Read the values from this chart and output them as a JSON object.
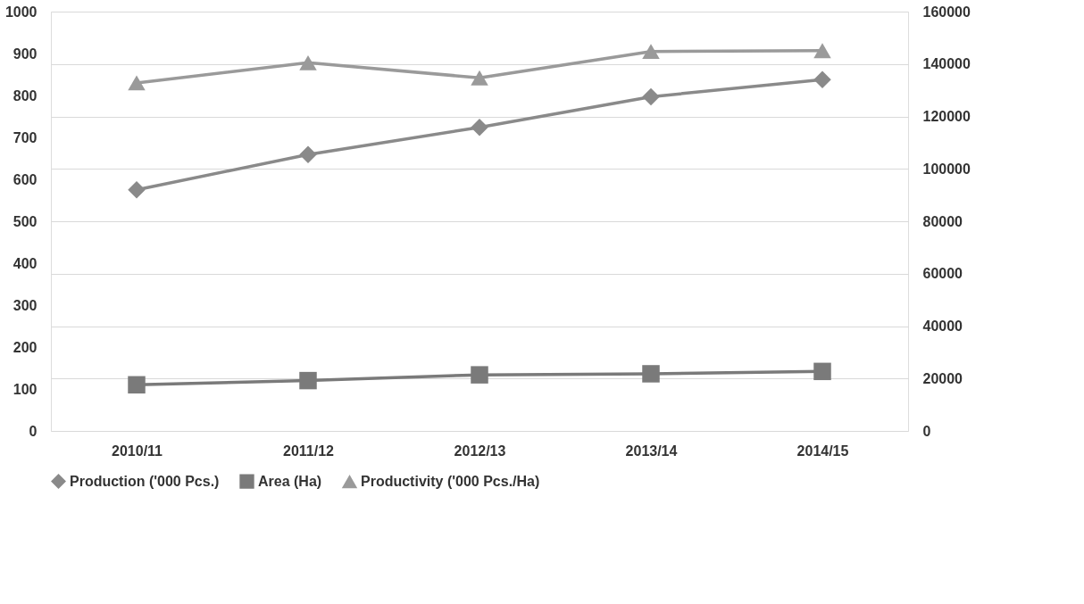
{
  "chart_data": {
    "type": "line",
    "categories": [
      "2010/11",
      "2011/12",
      "2012/13",
      "2013/14",
      "2014/15"
    ],
    "series": [
      {
        "name": "Production ('000 Pcs.)",
        "color": "#8a8a8a",
        "marker": "diamond",
        "values": [
          575,
          659,
          724,
          797,
          838
        ]
      },
      {
        "name": "Area (Ha)",
        "color": "#7a7a7a",
        "marker": "square",
        "axis": "y2",
        "values": [
          17600,
          19200,
          21400,
          21800,
          22700
        ]
      },
      {
        "name": "Productivity ('000 Pcs./Ha)",
        "color": "#9a9a9a",
        "marker": "triangle",
        "values": [
          830,
          878,
          842,
          905,
          907
        ]
      }
    ],
    "ylim": [
      0,
      1000
    ],
    "yticks": [
      0,
      100,
      200,
      300,
      400,
      500,
      600,
      700,
      800,
      900,
      1000
    ],
    "y2lim": [
      0,
      160000
    ],
    "y2ticks": [
      0,
      20000,
      40000,
      60000,
      80000,
      100000,
      120000,
      140000,
      160000
    ],
    "grid": "y2",
    "legend": "bottom",
    "line_style": "solid"
  }
}
